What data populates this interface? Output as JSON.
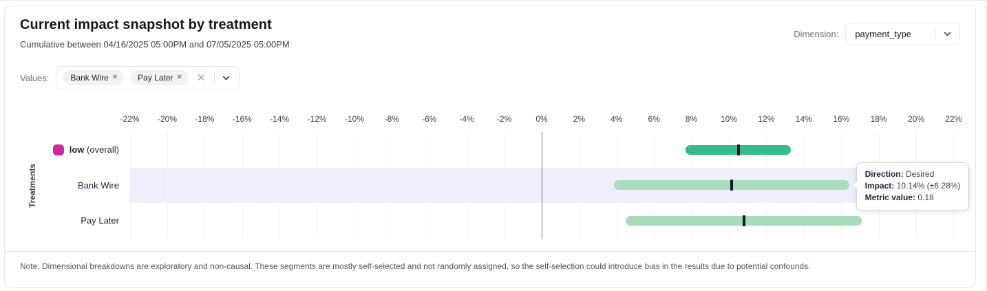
{
  "header": {
    "title": "Current impact snapshot by treatment",
    "subtitle": "Cumulative between 04/16/2025 05:00PM and 07/05/2025 05:00PM",
    "dimension_label": "Dimension:",
    "dimension_value": "payment_type"
  },
  "values_filter": {
    "label": "Values:",
    "chips": [
      "Bank Wire",
      "Pay Later"
    ],
    "remove_icon": "✕",
    "clear_icon": "✕"
  },
  "colors": {
    "overall_bar": "#35bb8c",
    "segment_bar": "#a9dcbc",
    "overall_swatch": "#d028a2",
    "row_highlight": "#eeeffa",
    "gridline": "#f2f2f3",
    "zero_line": "#75757c",
    "marker": "#111827"
  },
  "chart_data": {
    "type": "bar",
    "subtype": "horizontal-confidence-intervals",
    "ylabel": "Treatments",
    "axis": {
      "min": -22,
      "max": 22,
      "step": 2,
      "unit": "%",
      "ticks": [
        -22,
        -20,
        -18,
        -16,
        -14,
        -12,
        -10,
        -8,
        -6,
        -4,
        -2,
        0,
        2,
        4,
        6,
        8,
        10,
        12,
        14,
        16,
        18,
        20,
        22
      ]
    },
    "grid": true,
    "rows": [
      {
        "label": "low",
        "suffix": " (overall)",
        "bold_label": true,
        "swatch": "#d028a2",
        "color": "#35bb8c",
        "low": 7.7,
        "mid": 10.5,
        "high": 13.3,
        "highlighted": false
      },
      {
        "label": "Bank Wire",
        "suffix": "",
        "bold_label": false,
        "swatch": null,
        "color": "#a9dcbc",
        "low": 3.86,
        "mid": 10.14,
        "high": 16.42,
        "highlighted": true
      },
      {
        "label": "Pay Later",
        "suffix": "",
        "bold_label": false,
        "swatch": null,
        "color": "#a9dcbc",
        "low": 4.5,
        "mid": 10.8,
        "high": 17.1,
        "highlighted": false
      }
    ]
  },
  "tooltip": {
    "row": "Bank Wire",
    "direction_label": "Direction:",
    "direction_value": "Desired",
    "impact_label": "Impact:",
    "impact_value": "10.14% (±6.28%)",
    "metric_label": "Metric value:",
    "metric_value": "0.18"
  },
  "note": "Note: Dimensional breakdowns are exploratory and non-causal. These segments are mostly self-selected and not randomly assigned, so the self-selection could introduce bias in the results due to potential confounds."
}
